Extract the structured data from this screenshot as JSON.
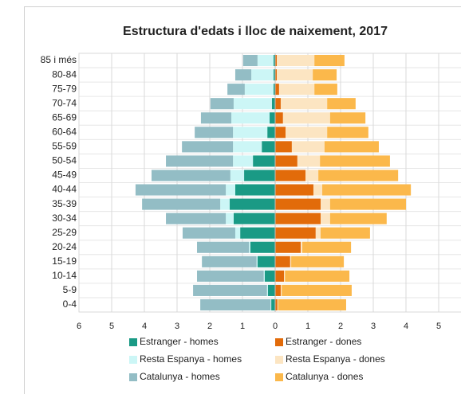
{
  "chart_data": {
    "type": "pyramid",
    "title": "Estructura d'edats i lloc de naixement, 2017",
    "categories": [
      "0-4",
      "5-9",
      "10-14",
      "15-19",
      "20-24",
      "25-29",
      "30-34",
      "35-39",
      "40-44",
      "45-49",
      "50-54",
      "55-59",
      "60-64",
      "65-69",
      "70-74",
      "75-79",
      "80-84",
      "85 i més"
    ],
    "series": [
      {
        "name": "Estranger - homes",
        "color": "#1a9a85",
        "values": [
          -0.12,
          -0.22,
          -0.32,
          -0.54,
          -0.76,
          -1.07,
          -1.27,
          -1.39,
          -1.22,
          -0.95,
          -0.68,
          -0.41,
          -0.24,
          -0.17,
          -0.1,
          -0.05,
          -0.05,
          -0.05
        ]
      },
      {
        "name": "Estranger - dones",
        "color": "#e26b0a",
        "values": [
          0.07,
          0.17,
          0.27,
          0.46,
          0.78,
          1.24,
          1.39,
          1.39,
          1.17,
          0.93,
          0.68,
          0.51,
          0.32,
          0.24,
          0.17,
          0.12,
          0.05,
          0.05
        ]
      },
      {
        "name": "Resta Espanya - homes",
        "color": "#ccf6f6",
        "values": [
          -0.02,
          -0.03,
          -0.03,
          -0.03,
          -0.04,
          -0.15,
          -0.24,
          -0.29,
          -0.29,
          -0.42,
          -0.61,
          -0.88,
          -1.05,
          -1.17,
          -1.17,
          -0.88,
          -0.68,
          -0.49
        ]
      },
      {
        "name": "Resta Espanya - dones",
        "color": "#fce5c2",
        "values": [
          0.02,
          0.03,
          0.03,
          0.03,
          0.05,
          0.15,
          0.29,
          0.29,
          0.27,
          0.39,
          0.69,
          1.0,
          1.27,
          1.44,
          1.42,
          1.08,
          1.1,
          1.15
        ]
      },
      {
        "name": "Catalunya - homes",
        "color": "#93bdc5",
        "values": [
          -2.15,
          -2.26,
          -2.04,
          -1.67,
          -1.59,
          -1.61,
          -1.83,
          -2.39,
          -2.76,
          -2.41,
          -2.05,
          -1.56,
          -1.17,
          -0.93,
          -0.71,
          -0.53,
          -0.49,
          -0.44
        ]
      },
      {
        "name": "Catalunya - dones",
        "color": "#fbb84b",
        "values": [
          2.08,
          2.14,
          1.97,
          1.61,
          1.49,
          1.51,
          1.73,
          2.32,
          2.71,
          2.44,
          2.14,
          1.66,
          1.26,
          1.08,
          0.87,
          0.7,
          0.73,
          0.92
        ]
      }
    ],
    "xlim": [
      -6,
      6
    ],
    "xticks": [
      {
        "value": -6,
        "label": "6"
      },
      {
        "value": -5,
        "label": "5"
      },
      {
        "value": -4,
        "label": "4"
      },
      {
        "value": -3,
        "label": "3"
      },
      {
        "value": -2,
        "label": "2"
      },
      {
        "value": -1,
        "label": "1"
      },
      0,
      1,
      2,
      3,
      4,
      5
    ],
    "grid": true
  }
}
